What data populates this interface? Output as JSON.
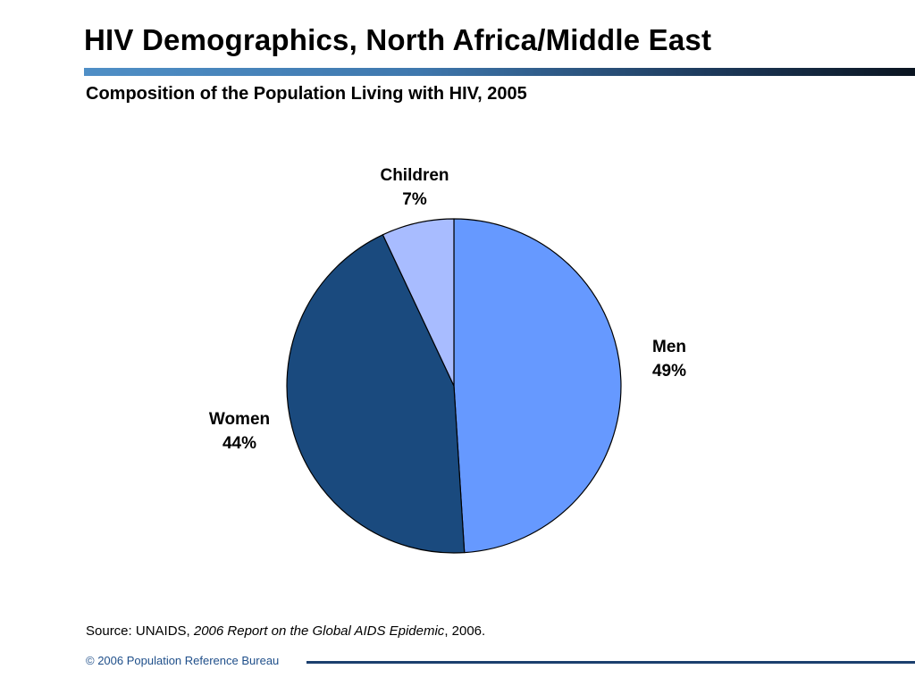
{
  "slide": {
    "title": "HIV Demographics, North Africa/Middle East",
    "subtitle": "Composition of the Population Living with HIV, 2005",
    "source_prefix": "Source: UNAIDS, ",
    "source_italic": "2006 Report on the Global AIDS Epidemic",
    "source_suffix": ", 2006.",
    "footer": "© 2006 Population Reference Bureau"
  },
  "chart_data": {
    "type": "pie",
    "title": "Composition of the Population Living with HIV, 2005",
    "slices": [
      {
        "label": "Men",
        "value": 49,
        "value_label": "49%",
        "color": "#6699ff"
      },
      {
        "label": "Women",
        "value": 44,
        "value_label": "44%",
        "color": "#1a4a7e"
      },
      {
        "label": "Children",
        "value": 7,
        "value_label": "7%",
        "color": "#a8bcff"
      }
    ],
    "start": "12 o'clock",
    "direction": "clockwise",
    "legend": "none",
    "labels": "outside"
  }
}
